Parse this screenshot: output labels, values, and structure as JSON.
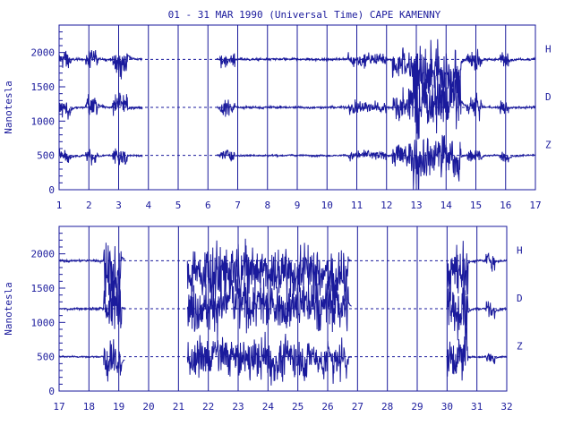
{
  "title": "01 - 31 MAR 1990 (Universal Time) CAPE KAMENNY",
  "colors": {
    "ink": "#1a1a9c",
    "background": "#ffffff"
  },
  "chart_data": [
    {
      "type": "line",
      "panel": "top",
      "ylabel": "Nanotesla",
      "xlim": [
        1,
        17
      ],
      "ylim": [
        0,
        2400
      ],
      "x_ticks": [
        "1",
        "2",
        "3",
        "4",
        "5",
        "6",
        "7",
        "8",
        "9",
        "10",
        "11",
        "12",
        "13",
        "14",
        "15",
        "16",
        "17"
      ],
      "y_ticks": [
        "0",
        "500",
        "1000",
        "1500",
        "2000"
      ],
      "reference_lines": [
        1900,
        1200,
        500
      ],
      "component_labels": [
        "H",
        "D",
        "Z"
      ],
      "data_gaps": [
        [
          3.8,
          6.3
        ],
        [
          13.0,
          13.1
        ]
      ],
      "series": [
        {
          "name": "H",
          "baseline": 1900,
          "segments": [
            [
              1.0,
              3.8
            ],
            [
              6.3,
              17.0
            ]
          ]
        },
        {
          "name": "D",
          "baseline": 1200,
          "segments": [
            [
              1.0,
              3.8
            ],
            [
              6.3,
              17.0
            ]
          ]
        },
        {
          "name": "Z",
          "baseline": 500,
          "segments": [
            [
              1.0,
              3.8
            ],
            [
              6.3,
              17.0
            ]
          ]
        }
      ]
    },
    {
      "type": "line",
      "panel": "bottom",
      "ylabel": "Nanotesla",
      "xlim": [
        17,
        32
      ],
      "ylim": [
        0,
        2400
      ],
      "x_ticks": [
        "17",
        "18",
        "19",
        "20",
        "21",
        "22",
        "23",
        "24",
        "25",
        "26",
        "27",
        "28",
        "29",
        "30",
        "31",
        "32"
      ],
      "y_ticks": [
        "0",
        "500",
        "1000",
        "1500",
        "2000"
      ],
      "reference_lines": [
        1900,
        1200,
        500
      ],
      "component_labels": [
        "H",
        "D",
        "Z"
      ],
      "data_gaps": [
        [
          19.2,
          21.3
        ],
        [
          26.8,
          30.0
        ]
      ],
      "series": [
        {
          "name": "H",
          "baseline": 1900,
          "segments": [
            [
              17.0,
              19.2
            ],
            [
              21.3,
              26.8
            ],
            [
              30.0,
              32.0
            ]
          ]
        },
        {
          "name": "D",
          "baseline": 1200,
          "segments": [
            [
              17.0,
              19.2
            ],
            [
              21.3,
              26.8
            ],
            [
              30.0,
              32.0
            ]
          ]
        },
        {
          "name": "Z",
          "baseline": 500,
          "segments": [
            [
              17.0,
              19.2
            ],
            [
              21.3,
              26.8
            ],
            [
              30.0,
              32.0
            ]
          ]
        }
      ]
    }
  ]
}
